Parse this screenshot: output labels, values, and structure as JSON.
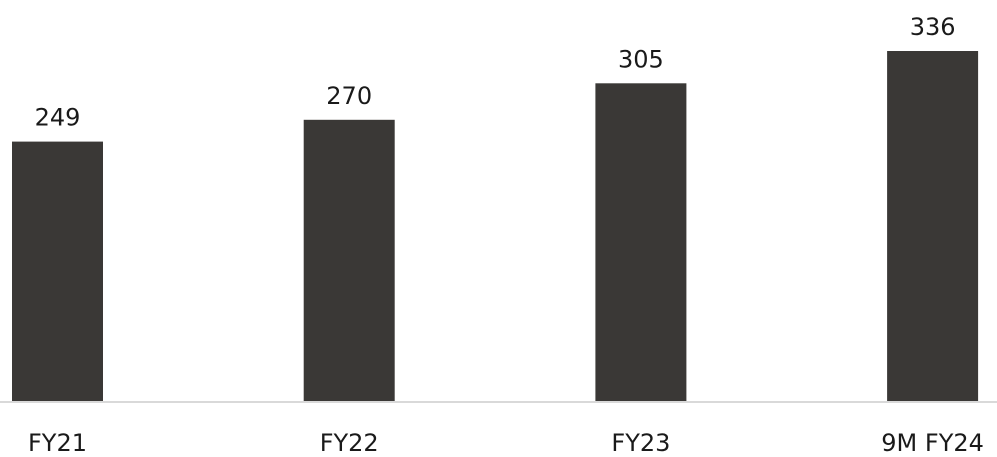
{
  "chart_data": {
    "type": "bar",
    "title": "",
    "xlabel": "",
    "ylabel": "",
    "categories": [
      "FY21",
      "FY22",
      "FY23",
      "9M FY24"
    ],
    "values": [
      249,
      270,
      305,
      336
    ],
    "data_labels": [
      "249",
      "270",
      "305",
      "336"
    ],
    "grid": false,
    "legend": "none",
    "colors": {
      "bar": "#3a3836",
      "axis": "#d9d9d9",
      "text": "#1a1a1a"
    }
  }
}
